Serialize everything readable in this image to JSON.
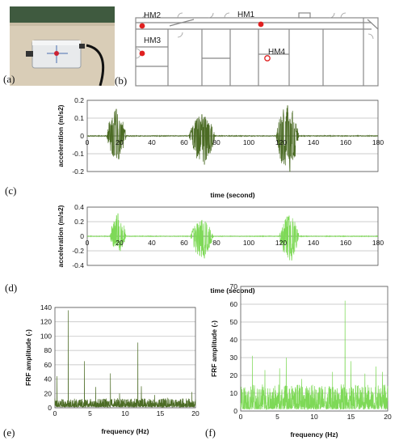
{
  "panels": {
    "a": "(a)",
    "b": "(b)",
    "c": "(c)",
    "d": "(d)",
    "e": "(e)",
    "f": "(f)"
  },
  "floorplan": {
    "markers": [
      {
        "label": "HM1",
        "style": "filled",
        "color": "#e02020"
      },
      {
        "label": "HM2",
        "style": "filled",
        "color": "#e02020"
      },
      {
        "label": "HM3",
        "style": "filled",
        "color": "#e02020"
      },
      {
        "label": "HM4",
        "style": "hollow",
        "color": "#e02020"
      }
    ]
  },
  "colors": {
    "dark_green": "#4b6b24",
    "light_green": "#7ed957",
    "axis": "#000000",
    "grid": "#bbbbbb"
  },
  "chart_data": [
    {
      "id": "c",
      "type": "line",
      "xlabel": "time (second)",
      "ylabel": "acceleration (m/s2)",
      "xlim": [
        0,
        180
      ],
      "ylim": [
        -0.2,
        0.2
      ],
      "xticks": [
        0,
        20,
        40,
        60,
        80,
        100,
        120,
        140,
        160,
        180
      ],
      "yticks": [
        -0.2,
        -0.1,
        0,
        0.1,
        0.2
      ],
      "ytick_labels": [
        "-0.2",
        "-0.1",
        "0",
        "0.1",
        "0.2"
      ],
      "grid": true,
      "color": "#4b6b24",
      "bursts": [
        {
          "start": 12,
          "end": 24,
          "peak_max": 0.15,
          "peak_min": -0.13
        },
        {
          "start": 63,
          "end": 79,
          "peak_max": 0.12,
          "peak_min": -0.16
        },
        {
          "start": 117,
          "end": 131,
          "peak_max": 0.17,
          "peak_min": -0.2
        }
      ]
    },
    {
      "id": "d",
      "type": "line",
      "xlabel": "time (second)",
      "ylabel": "acceleration (m/s2)",
      "xlim": [
        0,
        180
      ],
      "ylim": [
        -0.4,
        0.4
      ],
      "xticks": [
        0,
        20,
        40,
        60,
        80,
        100,
        120,
        140,
        160,
        180
      ],
      "yticks": [
        -0.4,
        -0.2,
        0,
        0.2,
        0.4
      ],
      "ytick_labels": [
        "-0.4",
        "-0.2",
        "0",
        "0.2",
        "0.4"
      ],
      "grid": true,
      "color": "#7ed957",
      "bursts": [
        {
          "start": 14,
          "end": 24,
          "peak_max": 0.31,
          "peak_min": -0.2
        },
        {
          "start": 64,
          "end": 78,
          "peak_max": 0.22,
          "peak_min": -0.3
        },
        {
          "start": 119,
          "end": 131,
          "peak_max": 0.28,
          "peak_min": -0.33
        }
      ]
    },
    {
      "id": "e",
      "type": "line",
      "xlabel": "frequency (Hz)",
      "ylabel": "FRF amplitude (-)",
      "xlim": [
        0,
        20
      ],
      "ylim": [
        0,
        140
      ],
      "xticks": [
        0,
        5,
        10,
        15,
        20
      ],
      "yticks": [
        0,
        20,
        40,
        60,
        80,
        100,
        120,
        140
      ],
      "ytick_labels": [
        "0",
        "20",
        "40",
        "60",
        "80",
        "100",
        "120",
        "140"
      ],
      "grid": true,
      "color": "#4b6b24",
      "peaks": [
        [
          0.3,
          44
        ],
        [
          1.9,
          136
        ],
        [
          4.2,
          65
        ],
        [
          5.8,
          29
        ],
        [
          7.9,
          48
        ],
        [
          9.2,
          20
        ],
        [
          11.8,
          91
        ],
        [
          12.3,
          30
        ],
        [
          14.2,
          18
        ],
        [
          16.0,
          14
        ],
        [
          19.5,
          22
        ]
      ],
      "noise_level": 12
    },
    {
      "id": "f",
      "type": "line",
      "xlabel": "frequency (Hz)",
      "ylabel": "FRF amplitude (-)",
      "xlim": [
        0,
        20
      ],
      "ylim": [
        0,
        70
      ],
      "xticks": [
        0,
        5,
        10,
        15,
        20
      ],
      "yticks": [
        0,
        10,
        20,
        30,
        40,
        50,
        60,
        70
      ],
      "ytick_labels": [
        "0",
        "10",
        "20",
        "30",
        "40",
        "50",
        "60",
        "70"
      ],
      "grid": true,
      "color": "#7ed957",
      "peaks": [
        [
          1.6,
          31
        ],
        [
          3.3,
          23
        ],
        [
          5.3,
          24
        ],
        [
          6.2,
          30
        ],
        [
          8.3,
          18
        ],
        [
          12.5,
          22
        ],
        [
          14.2,
          62
        ],
        [
          15.0,
          28
        ],
        [
          16.9,
          21
        ],
        [
          18.4,
          25
        ],
        [
          19.3,
          22
        ]
      ],
      "noise_level": 14
    }
  ]
}
